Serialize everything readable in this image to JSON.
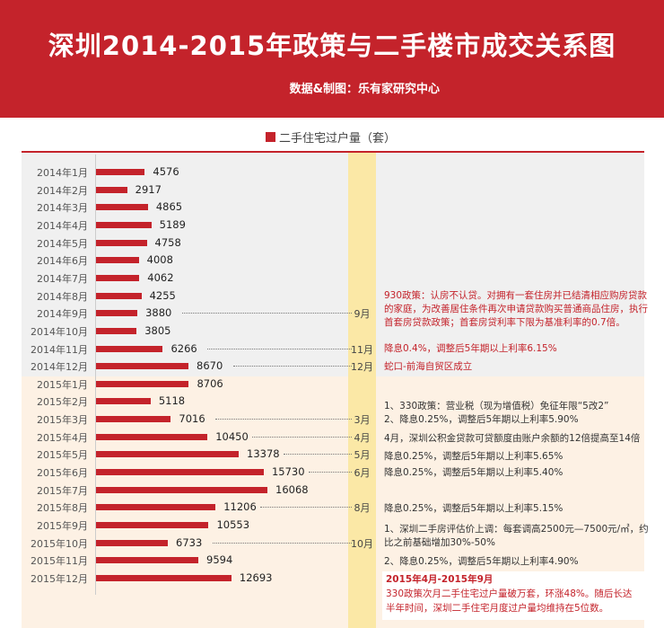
{
  "header": {
    "title": "深圳2014-2015年政策与二手楼市成交关系图",
    "subtitle": "数据&制图：乐有家研究中心"
  },
  "colors": {
    "accent": "#c4232b",
    "bg_2014": "#f0f0f0",
    "bg_2015": "#fdf1e4",
    "month_column": "#fbe8a6"
  },
  "chart_data": {
    "type": "bar",
    "orientation": "horizontal",
    "legend": "二手住宅过户量（套）",
    "legend_position": "top",
    "categories": [
      "2014年1月",
      "2014年2月",
      "2014年3月",
      "2014年4月",
      "2014年5月",
      "2014年6月",
      "2014年7月",
      "2014年8月",
      "2014年9月",
      "2014年10月",
      "2014年11月",
      "2014年12月",
      "2015年1月",
      "2015年2月",
      "2015年3月",
      "2015年4月",
      "2015年5月",
      "2015年6月",
      "2015年7月",
      "2015年8月",
      "2015年9月",
      "2015年10月",
      "2015年11月",
      "2015年12月"
    ],
    "values": [
      4576,
      2917,
      4865,
      5189,
      4758,
      4008,
      4062,
      4255,
      3880,
      3805,
      6266,
      8670,
      8706,
      5118,
      7016,
      10450,
      13378,
      15730,
      16068,
      11206,
      10553,
      6733,
      9594,
      12693
    ],
    "xlim": [
      0,
      16068
    ]
  },
  "markers": [
    {
      "row": 8,
      "label": "9月"
    },
    {
      "row": 10,
      "label": "11月"
    },
    {
      "row": 11,
      "label": "12月"
    },
    {
      "row": 14,
      "label": "3月"
    },
    {
      "row": 15,
      "label": "4月"
    },
    {
      "row": 16,
      "label": "5月"
    },
    {
      "row": 17,
      "label": "6月"
    },
    {
      "row": 19,
      "label": "8月"
    },
    {
      "row": 21,
      "label": "10月"
    }
  ],
  "notes": [
    {
      "text": "930政策：认房不认贷。对拥有一套住房并已结清相应购房贷款的家庭，为改善居住条件再次申请贷款购买普通商品住房，执行首套房贷款政策；首套房贷利率下限为基准利率的0.7倍。"
    },
    {
      "text": "降息0.4%，调整后5年期以上利率6.15%"
    },
    {
      "text": "蛇口-前海自贸区成立"
    },
    {
      "text": "1、330政策：营业税（现为增值税）免征年限“5改2”"
    },
    {
      "text": "2、降息0.25%，调整后5年期以上利率5.90%"
    },
    {
      "text": "4月，深圳公积金贷款可贷额度由账户余额的12倍提高至14倍"
    },
    {
      "text": "降息0.25%，调整后5年期以上利率5.65%"
    },
    {
      "text": "降息0.25%，调整后5年期以上利率5.40%"
    },
    {
      "text": "降息0.25%，调整后5年期以上利率5.15%"
    },
    {
      "text": "1、深圳二手房评估价上调：每套调高2500元—7500元/㎡，约比之前基础增加30%-50%"
    },
    {
      "text": "2、降息0.25%，调整后5年期以上利率4.90%"
    }
  ],
  "highlight": {
    "title": "2015年4月-2015年9月",
    "text": "330政策次月二手住宅过户量破万套，环涨48%。随后长达半年时间，深圳二手住宅月度过户量均维持在5位数。"
  }
}
